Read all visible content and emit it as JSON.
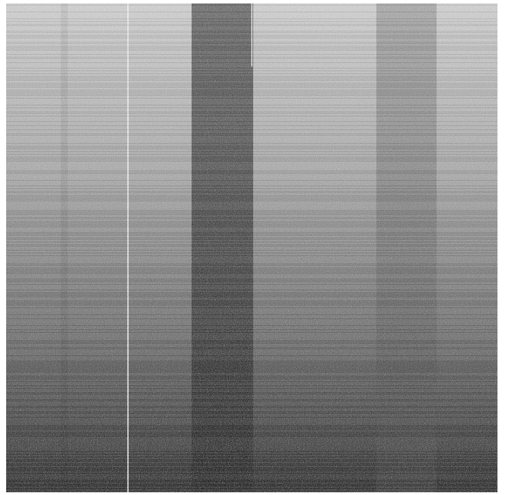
{
  "image": {
    "kind": "grayscale-noise-with-vertical-bands",
    "palette": {
      "background": "#ffffff",
      "light_top": "#c9c9c9",
      "mid": "#8a8a8a",
      "dark_bottom": "#333333",
      "dark_band_top": "#6a6a6a",
      "dark_band_bottom": "#2e2e2e"
    }
  }
}
